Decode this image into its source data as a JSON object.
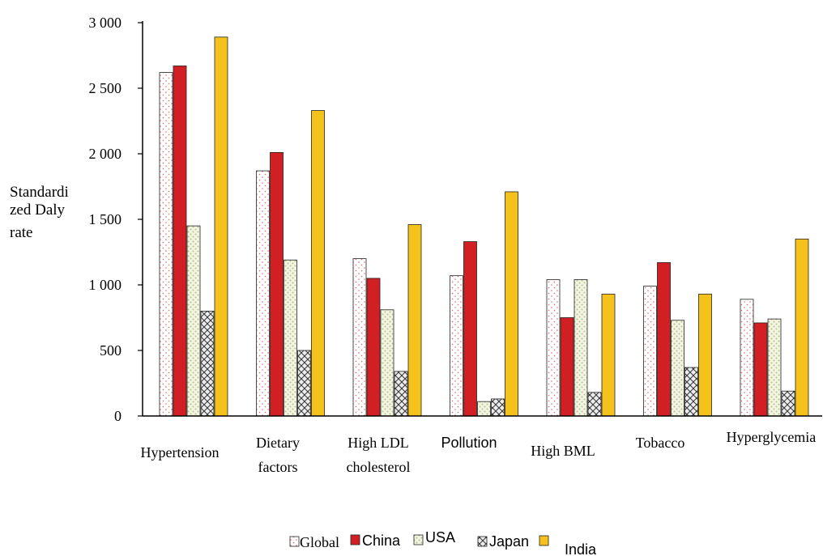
{
  "chart_data": {
    "type": "bar",
    "ylabel_lines": [
      "Standardi",
      "zed Daly",
      "rate"
    ],
    "ylim": [
      0,
      3000
    ],
    "y_ticks": [
      0,
      500,
      1000,
      1500,
      2000,
      2500,
      3000
    ],
    "y_tick_labels": [
      "0",
      "500",
      "1 000",
      "1 500",
      "2 000",
      "2 500",
      "3 000"
    ],
    "categories": [
      "Hypertension",
      "Dietary factors",
      "High LDL cholesterol",
      "Pollution",
      "High BML",
      "Tobacco",
      "Hyperglycemia"
    ],
    "category_label_lines": [
      [
        "Hypertension"
      ],
      [
        "Dietary",
        "factors"
      ],
      [
        "High LDL",
        "cholesterol"
      ],
      [
        "Pollution"
      ],
      [
        "High BML"
      ],
      [
        "Tobacco"
      ],
      [
        "Hyperglycemia"
      ]
    ],
    "series": [
      {
        "name": "Global",
        "color": "#ffffff",
        "pattern": "dots-red",
        "values": [
          2620,
          1870,
          1200,
          1070,
          1040,
          990,
          890
        ]
      },
      {
        "name": "China",
        "color": "#d21f24",
        "pattern": "solid",
        "values": [
          2670,
          2010,
          1050,
          1330,
          750,
          1170,
          710
        ]
      },
      {
        "name": "USA",
        "color": "#f3f1df",
        "pattern": "dots-green",
        "values": [
          1450,
          1190,
          810,
          110,
          1040,
          730,
          740
        ]
      },
      {
        "name": "Japan",
        "color": "#d9d9d9",
        "pattern": "crosshatch",
        "values": [
          800,
          500,
          340,
          130,
          180,
          370,
          190
        ]
      },
      {
        "name": "India",
        "color": "#f4c21b",
        "pattern": "solid",
        "values": [
          2890,
          2330,
          1460,
          1710,
          930,
          930,
          1350
        ]
      }
    ],
    "grid": false,
    "legend_position": "bottom"
  }
}
